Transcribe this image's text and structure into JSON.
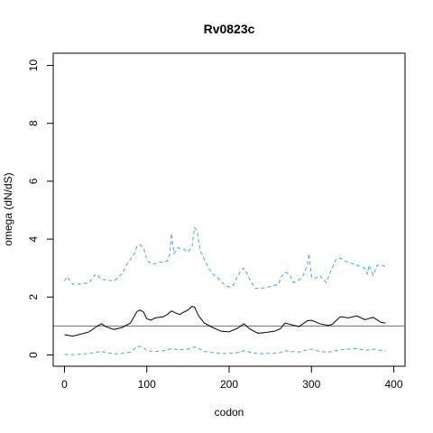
{
  "chart_data": {
    "type": "line",
    "title": "Rv0823c",
    "xlabel": "codon",
    "ylabel": "omega (dN/dS)",
    "xlim": [
      0,
      400
    ],
    "ylim": [
      0,
      10
    ],
    "x_ticks": [
      0,
      100,
      200,
      300,
      400
    ],
    "y_ticks": [
      0,
      2,
      4,
      6,
      8,
      10
    ],
    "grid": false,
    "reference_line": {
      "y": 1,
      "color": "#c0458a"
    },
    "series": [
      {
        "style": "solid",
        "color": "#000000",
        "x": [
          0,
          10,
          20,
          30,
          40,
          45,
          50,
          60,
          70,
          80,
          88,
          92,
          96,
          100,
          105,
          110,
          115,
          120,
          125,
          130,
          135,
          140,
          145,
          150,
          155,
          158,
          163,
          170,
          180,
          190,
          200,
          210,
          218,
          225,
          235,
          245,
          255,
          262,
          268,
          275,
          285,
          295,
          300,
          310,
          320,
          325,
          335,
          345,
          355,
          365,
          375,
          385,
          390
        ],
        "y": [
          0.7,
          0.65,
          0.72,
          0.8,
          1.0,
          1.08,
          0.98,
          0.88,
          0.95,
          1.1,
          1.5,
          1.55,
          1.48,
          1.25,
          1.2,
          1.28,
          1.3,
          1.32,
          1.4,
          1.52,
          1.45,
          1.4,
          1.48,
          1.55,
          1.68,
          1.65,
          1.35,
          1.1,
          0.95,
          0.82,
          0.8,
          0.92,
          1.08,
          0.9,
          0.75,
          0.78,
          0.82,
          0.9,
          1.1,
          1.05,
          0.98,
          1.18,
          1.2,
          1.08,
          1.02,
          1.05,
          1.32,
          1.28,
          1.35,
          1.22,
          1.3,
          1.12,
          1.1
        ]
      },
      {
        "style": "dashed",
        "color": "#3fa7d9",
        "x": [
          0,
          3,
          10,
          20,
          30,
          38,
          42,
          46,
          50,
          60,
          70,
          75,
          80,
          85,
          88,
          92,
          96,
          100,
          105,
          110,
          115,
          120,
          125,
          128,
          130,
          133,
          138,
          145,
          150,
          155,
          158,
          161,
          165,
          170,
          175,
          180,
          185,
          190,
          195,
          200,
          205,
          210,
          214,
          218,
          222,
          226,
          232,
          240,
          248,
          255,
          260,
          263,
          268,
          273,
          278,
          285,
          290,
          295,
          297,
          300,
          305,
          310,
          318,
          325,
          330,
          335,
          340,
          345,
          350,
          355,
          360,
          365,
          368,
          370,
          375,
          380,
          385,
          390
        ],
        "y": [
          2.55,
          2.7,
          2.45,
          2.45,
          2.5,
          2.8,
          2.7,
          2.6,
          2.6,
          2.55,
          2.8,
          3.1,
          3.3,
          3.5,
          3.75,
          3.8,
          3.7,
          3.3,
          3.15,
          3.15,
          3.2,
          3.2,
          3.25,
          3.5,
          4.2,
          3.5,
          3.7,
          3.65,
          3.55,
          3.75,
          4.4,
          4.3,
          3.6,
          3.3,
          3.0,
          2.8,
          2.7,
          2.55,
          2.4,
          2.35,
          2.4,
          2.7,
          2.9,
          3.0,
          2.8,
          2.55,
          2.3,
          2.3,
          2.35,
          2.4,
          2.45,
          2.7,
          2.85,
          2.8,
          2.5,
          2.6,
          2.75,
          3.1,
          3.5,
          2.7,
          2.65,
          2.75,
          2.5,
          3.0,
          3.3,
          3.35,
          3.25,
          3.2,
          3.15,
          3.1,
          3.05,
          3.0,
          2.8,
          3.1,
          2.75,
          3.1,
          3.1,
          3.05
        ]
      },
      {
        "style": "dashed",
        "color": "#3fa7d9",
        "x": [
          0,
          10,
          20,
          30,
          40,
          45,
          50,
          60,
          70,
          80,
          88,
          92,
          96,
          100,
          110,
          120,
          125,
          130,
          135,
          140,
          150,
          158,
          163,
          170,
          180,
          190,
          200,
          210,
          218,
          225,
          235,
          245,
          255,
          262,
          268,
          275,
          285,
          295,
          300,
          310,
          320,
          325,
          335,
          345,
          355,
          365,
          375,
          385,
          390
        ],
        "y": [
          0.02,
          0.01,
          0.03,
          0.05,
          0.1,
          0.12,
          0.08,
          0.04,
          0.05,
          0.1,
          0.28,
          0.3,
          0.25,
          0.15,
          0.12,
          0.15,
          0.18,
          0.22,
          0.2,
          0.18,
          0.2,
          0.28,
          0.22,
          0.12,
          0.08,
          0.05,
          0.05,
          0.08,
          0.15,
          0.1,
          0.04,
          0.05,
          0.06,
          0.08,
          0.15,
          0.12,
          0.1,
          0.18,
          0.2,
          0.12,
          0.1,
          0.12,
          0.18,
          0.2,
          0.22,
          0.16,
          0.2,
          0.15,
          0.15
        ]
      }
    ]
  }
}
